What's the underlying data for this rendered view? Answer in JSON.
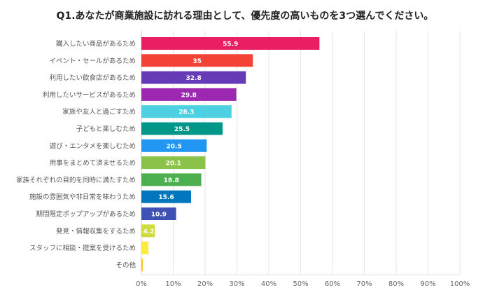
{
  "chart_data": {
    "type": "bar",
    "orientation": "horizontal",
    "title": "Q1.あなたが商業施設に訪れる理由として、優先度の高いものを3つ選んでください。",
    "categories": [
      "購入したい商品があるため",
      "イベント・セールがあるため",
      "利用したい飲食店があるため",
      "利用したいサービスがあるため",
      "家族や友人と過ごすため",
      "子どもと楽しむため",
      "遊び・エンタメを楽しむため",
      "用事をまとめて済ませるため",
      "家族それぞれの目的を同時に満たすため",
      "施設の雰囲気や非日常を味わうため",
      "期間限定ポップアップがあるため",
      "発見・情報収集をするため",
      "スタッフに相談・提案を受けるため",
      "その他"
    ],
    "values": [
      55.9,
      35,
      32.8,
      29.8,
      28.3,
      25.5,
      20.5,
      20.1,
      18.8,
      15.6,
      10.9,
      4.2,
      2.2,
      0.4
    ],
    "data_labels": [
      "55.9",
      "35",
      "32.8",
      "29.8",
      "28.3",
      "25.5",
      "20.5",
      "20.1",
      "18.8",
      "15.6",
      "10.9",
      "4.2",
      "",
      ""
    ],
    "colors": [
      "#e91e63",
      "#f44336",
      "#673ab7",
      "#9c27b0",
      "#4dd0e1",
      "#009688",
      "#2196f3",
      "#8bc34a",
      "#4caf50",
      "#0277bd",
      "#3f51b5",
      "#cddc39",
      "#ffeb3b",
      "#ffc107"
    ],
    "xlim": [
      0,
      100
    ],
    "xticks": [
      "0%",
      "10%",
      "20%",
      "30%",
      "40%",
      "50%",
      "60%",
      "70%",
      "80%",
      "90%",
      "100%"
    ],
    "grid": true
  }
}
